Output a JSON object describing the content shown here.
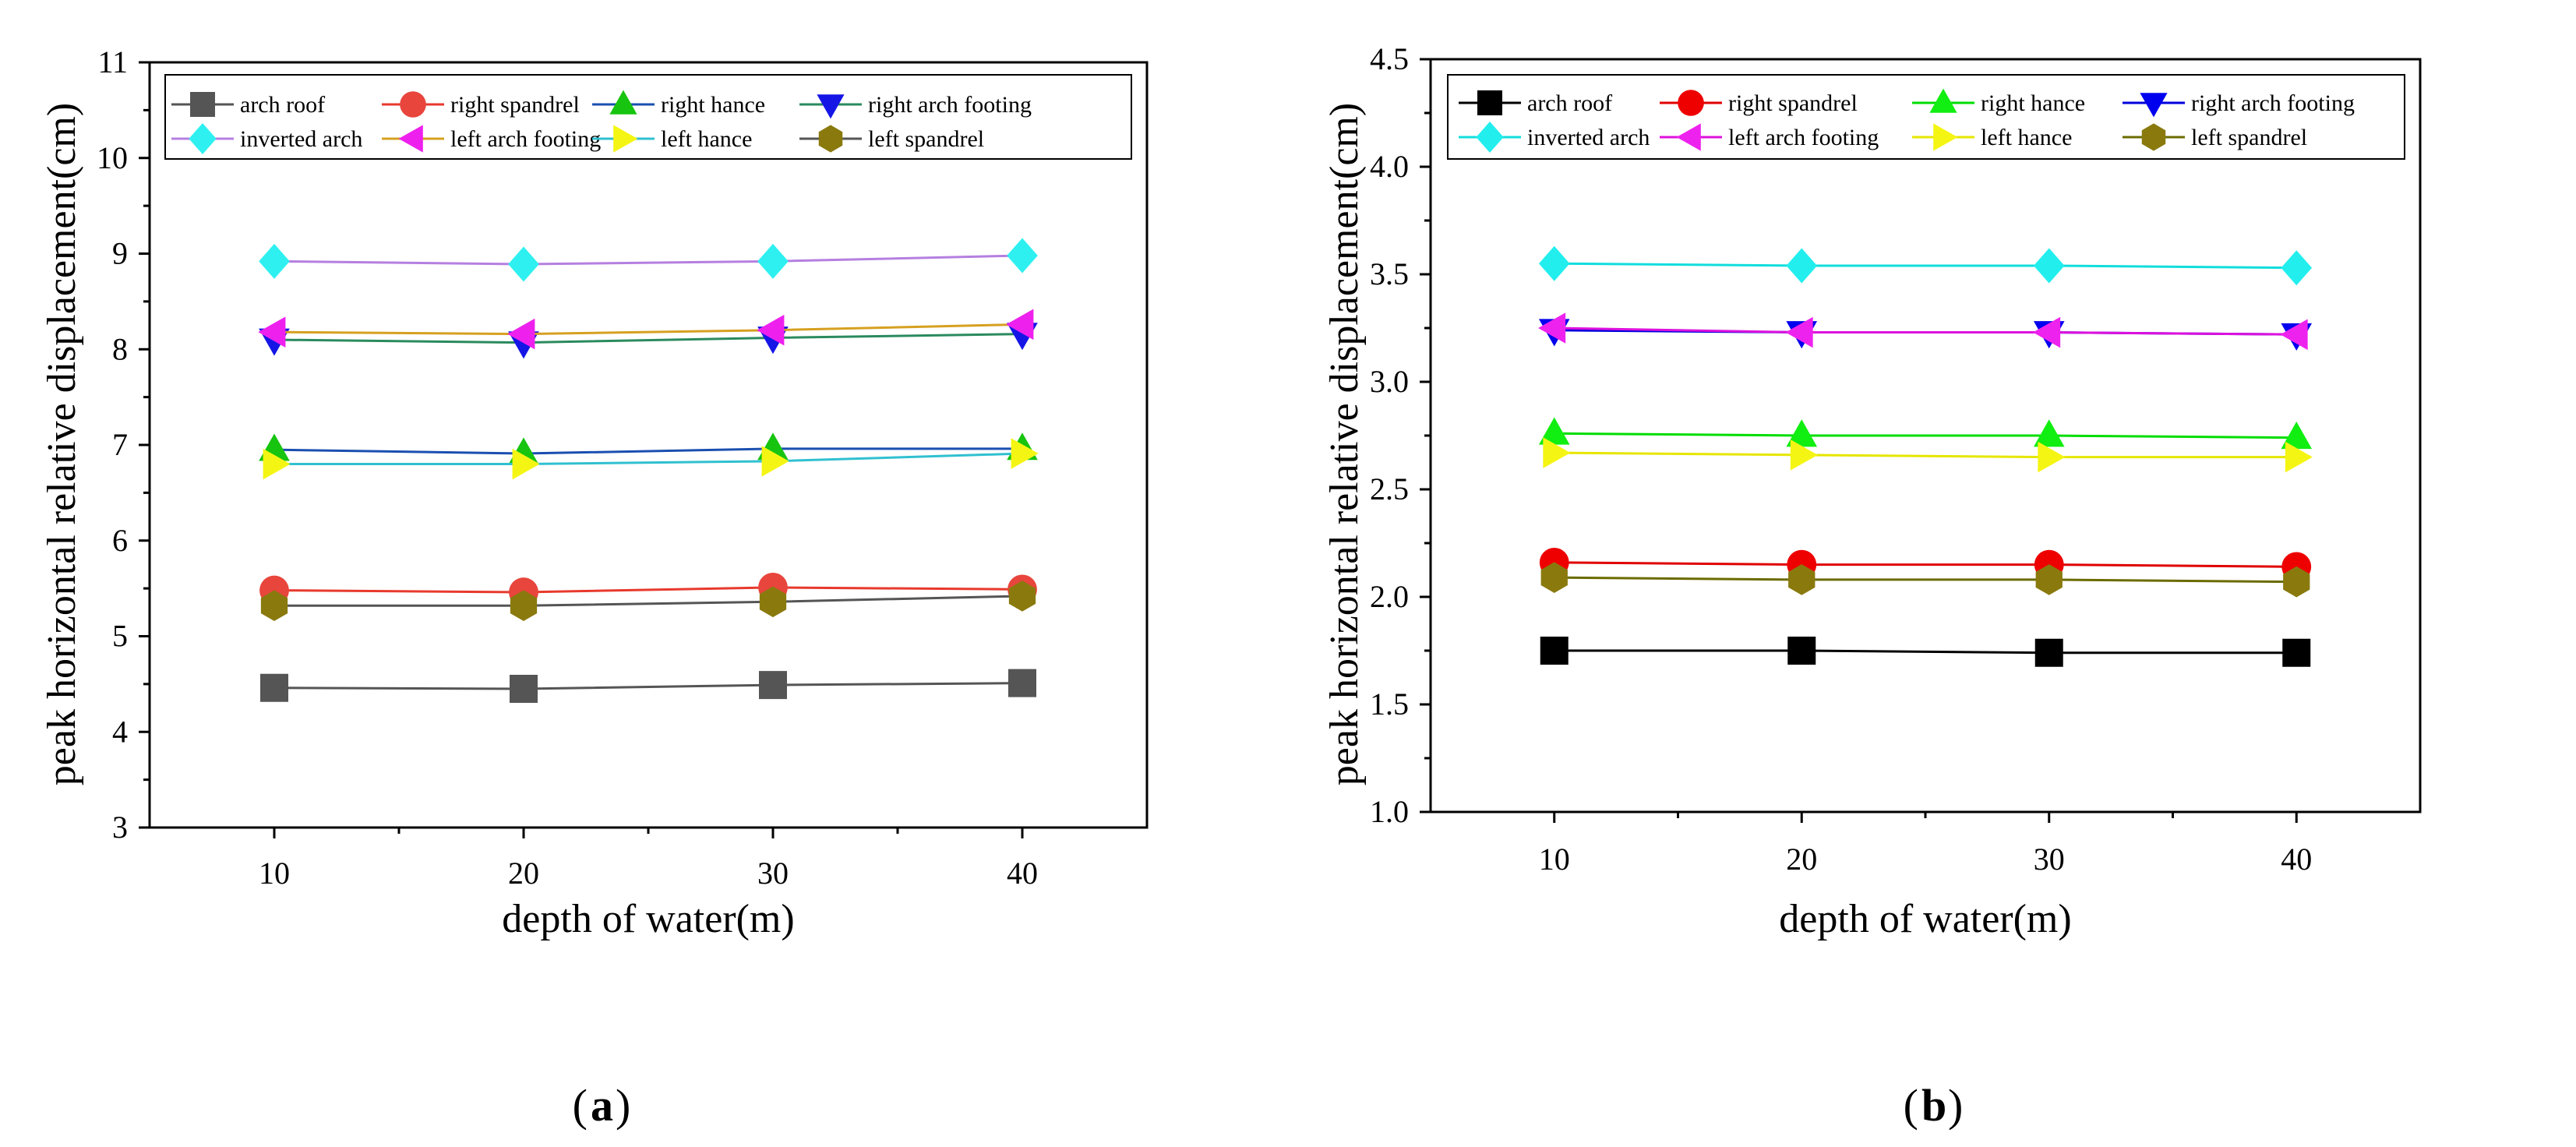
{
  "figure": {
    "panel_labels": [
      "a",
      "b"
    ]
  },
  "chart_data": [
    {
      "type": "line",
      "panel": "a",
      "xlabel": "depth of water(m)",
      "ylabel": "peak horizontal relative displacement(cm)",
      "x": [
        10,
        20,
        30,
        40
      ],
      "xlim": [
        5,
        45
      ],
      "ylim": [
        3,
        11
      ],
      "xticks": [
        10,
        20,
        30,
        40
      ],
      "yticks": [
        3,
        4,
        5,
        6,
        7,
        8,
        9,
        10,
        11
      ],
      "ytick_labels": [
        "3",
        "4",
        "5",
        "6",
        "7",
        "8",
        "9",
        "10",
        "11"
      ],
      "legend_position": "top",
      "series": [
        {
          "name": "arch roof",
          "marker": "square",
          "line_color": "#555555",
          "marker_color": "#555555",
          "values": [
            4.46,
            4.45,
            4.49,
            4.51
          ]
        },
        {
          "name": "right spandrel",
          "marker": "circle",
          "line_color": "#e8392d",
          "marker_color": "#e8453c",
          "values": [
            5.48,
            5.46,
            5.51,
            5.49
          ]
        },
        {
          "name": "right hance",
          "marker": "triangle-up",
          "line_color": "#1a4fb0",
          "marker_color": "#17c40f",
          "values": [
            6.95,
            6.91,
            6.96,
            6.96
          ]
        },
        {
          "name": "right arch footing",
          "marker": "triangle-down",
          "line_color": "#2a8a5e",
          "marker_color": "#1515e6",
          "values": [
            8.1,
            8.07,
            8.12,
            8.16
          ]
        },
        {
          "name": "inverted arch",
          "marker": "diamond",
          "line_color": "#b57fe0",
          "marker_color": "#2ff0f0",
          "values": [
            8.92,
            8.89,
            8.92,
            8.98
          ]
        },
        {
          "name": "left arch footing",
          "marker": "triangle-left",
          "line_color": "#d6a020",
          "marker_color": "#ee20ee",
          "values": [
            8.18,
            8.16,
            8.2,
            8.26
          ]
        },
        {
          "name": "left hance",
          "marker": "triangle-right",
          "line_color": "#30c0d0",
          "marker_color": "#f5f514",
          "values": [
            6.8,
            6.8,
            6.83,
            6.91
          ]
        },
        {
          "name": "left spandrel",
          "marker": "hexagon",
          "line_color": "#555555",
          "marker_color": "#8a7a0e",
          "values": [
            5.32,
            5.32,
            5.36,
            5.42
          ]
        }
      ]
    },
    {
      "type": "line",
      "panel": "b",
      "xlabel": "depth of water(m)",
      "ylabel": "peak horizontal relative displacement(cm)",
      "x": [
        10,
        20,
        30,
        40
      ],
      "xlim": [
        5,
        45
      ],
      "ylim": [
        1.0,
        4.5
      ],
      "xticks": [
        10,
        20,
        30,
        40
      ],
      "yticks": [
        1.0,
        1.5,
        2.0,
        2.5,
        3.0,
        3.5,
        4.0,
        4.5
      ],
      "ytick_labels": [
        "1.0",
        "1.5",
        "2.0",
        "2.5",
        "3.0",
        "3.5",
        "4.0",
        "4.5"
      ],
      "legend_position": "top",
      "series": [
        {
          "name": "arch roof",
          "marker": "square",
          "line_color": "#000000",
          "marker_color": "#000000",
          "values": [
            1.75,
            1.75,
            1.74,
            1.74
          ]
        },
        {
          "name": "right spandrel",
          "marker": "circle",
          "line_color": "#e00000",
          "marker_color": "#ee0000",
          "values": [
            2.16,
            2.15,
            2.15,
            2.14
          ]
        },
        {
          "name": "right hance",
          "marker": "triangle-up",
          "line_color": "#00dd00",
          "marker_color": "#11ee11",
          "values": [
            2.76,
            2.75,
            2.75,
            2.74
          ]
        },
        {
          "name": "right arch footing",
          "marker": "triangle-down",
          "line_color": "#0000dd",
          "marker_color": "#0000ee",
          "values": [
            3.24,
            3.23,
            3.23,
            3.22
          ]
        },
        {
          "name": "inverted arch",
          "marker": "diamond",
          "line_color": "#11dddd",
          "marker_color": "#22eeee",
          "values": [
            3.55,
            3.54,
            3.54,
            3.53
          ]
        },
        {
          "name": "left arch footing",
          "marker": "triangle-left",
          "line_color": "#dd11dd",
          "marker_color": "#ee22ee",
          "values": [
            3.25,
            3.23,
            3.23,
            3.22
          ]
        },
        {
          "name": "left hance",
          "marker": "triangle-right",
          "line_color": "#e6e600",
          "marker_color": "#f5f514",
          "values": [
            2.67,
            2.66,
            2.65,
            2.65
          ]
        },
        {
          "name": "left spandrel",
          "marker": "hexagon",
          "line_color": "#6b6b00",
          "marker_color": "#8a7a0e",
          "values": [
            2.09,
            2.08,
            2.08,
            2.07
          ]
        }
      ]
    }
  ]
}
